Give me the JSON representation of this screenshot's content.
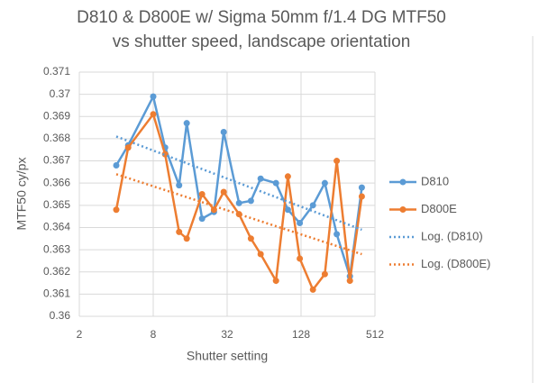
{
  "chart_data": {
    "type": "line",
    "title": "D810 & D800E w/ Sigma 50mm f/1.4 DG MTF50",
    "subtitle": "vs shutter speed, landscape orientation",
    "x_label": "Shutter setting",
    "y_label": "MTF50 cy/px",
    "x": [
      4,
      5,
      8,
      10,
      13,
      15,
      20,
      25,
      30,
      40,
      50,
      60,
      80,
      100,
      125,
      160,
      200,
      250,
      320,
      400
    ],
    "series": [
      {
        "name": "D810",
        "color": "#5b9bd5",
        "values": [
          0.3668,
          0.3677,
          0.3699,
          0.3676,
          0.3659,
          0.3687,
          0.3644,
          0.3647,
          0.3683,
          0.3651,
          0.3652,
          0.3662,
          0.366,
          0.3648,
          0.3642,
          0.365,
          0.366,
          0.3637,
          0.3618,
          0.3658
        ]
      },
      {
        "name": "D800E",
        "color": "#ed7d31",
        "values": [
          0.3648,
          0.3676,
          0.3691,
          0.3673,
          0.3638,
          0.3635,
          0.3655,
          0.3648,
          0.3656,
          0.3646,
          0.3635,
          0.3628,
          0.3616,
          0.3663,
          0.3626,
          0.3612,
          0.3619,
          0.367,
          0.3616,
          0.3654
        ]
      }
    ],
    "trendlines": [
      {
        "name": "Log. (D810)",
        "color": "#5b9bd5",
        "x": [
          4,
          400
        ],
        "values": [
          0.3681,
          0.3639
        ]
      },
      {
        "name": "Log. (D800E)",
        "color": "#ed7d31",
        "x": [
          4,
          400
        ],
        "values": [
          0.3664,
          0.3628
        ]
      }
    ],
    "xscale": "log2",
    "xlim": [
      2,
      512
    ],
    "xticks": [
      2,
      8,
      32,
      128,
      512
    ],
    "ylim": [
      0.36,
      0.371
    ],
    "yticks": [
      0.36,
      0.361,
      0.362,
      0.363,
      0.364,
      0.365,
      0.366,
      0.367,
      0.368,
      0.369,
      0.37,
      0.371
    ],
    "grid": true,
    "legend": "right"
  }
}
